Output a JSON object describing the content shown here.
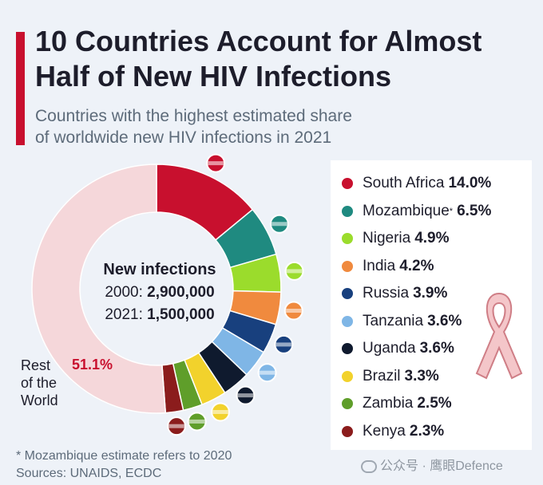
{
  "header": {
    "title_line1": "10 Countries Account for Almost",
    "title_line2": "Half of New HIV Infections",
    "subtitle_line1": "Countries with the highest estimated share",
    "subtitle_line2": "of worldwide new HIV infections in 2021"
  },
  "center": {
    "title": "New infections",
    "row2000_label": "2000:",
    "row2000_value": "2,900,000",
    "row2021_label": "2021:",
    "row2021_value": "1,500,000"
  },
  "rest": {
    "line1": "Rest",
    "line2": "of the",
    "line3": "World",
    "pct": "51.1%"
  },
  "legend": [
    {
      "name": "South Africa",
      "value": "14.0%"
    },
    {
      "name": "Mozambique",
      "value": "6.5%",
      "asterisk": "*"
    },
    {
      "name": "Nigeria",
      "value": "4.9%"
    },
    {
      "name": "India",
      "value": "4.2%"
    },
    {
      "name": "Russia",
      "value": "3.9%"
    },
    {
      "name": "Tanzania",
      "value": "3.6%"
    },
    {
      "name": "Uganda",
      "value": "3.6%"
    },
    {
      "name": "Brazil",
      "value": "3.3%"
    },
    {
      "name": "Zambia",
      "value": "2.5%"
    },
    {
      "name": "Kenya",
      "value": "2.3%"
    }
  ],
  "footer": {
    "note": "* Mozambique estimate refers to 2020",
    "sources": "Sources: UNAIDS, ECDC",
    "watermark": "公众号 · 鹰眼Defence"
  },
  "chart_data": {
    "type": "pie",
    "title": "10 Countries Account for Almost Half of New HIV Infections",
    "subtitle": "Countries with the highest estimated share of worldwide new HIV infections in 2021",
    "unit": "%",
    "donut": true,
    "categories": [
      "South Africa",
      "Mozambique",
      "Nigeria",
      "India",
      "Russia",
      "Tanzania",
      "Uganda",
      "Brazil",
      "Zambia",
      "Kenya",
      "Rest of the World"
    ],
    "values": [
      14.0,
      6.5,
      4.9,
      4.2,
      3.9,
      3.6,
      3.6,
      3.3,
      2.5,
      2.3,
      51.1
    ],
    "colors": [
      "#c8102e",
      "#1f8a80",
      "#9bdc2c",
      "#f08a3e",
      "#18407e",
      "#7fb6e6",
      "#0f1a2e",
      "#f2d22c",
      "#5f9e2a",
      "#8b1c1c",
      "#f5d7da"
    ],
    "legend_position": "right"
  }
}
